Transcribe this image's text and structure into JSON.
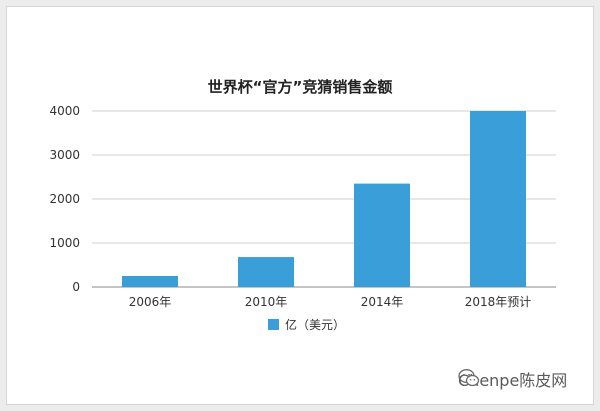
{
  "chart_data": {
    "type": "bar",
    "title": "世界杯“官方”竞猜销售金额",
    "categories": [
      "2006年",
      "2010年",
      "2014年",
      "2018年预计"
    ],
    "series": [
      {
        "name": "亿（美元）",
        "values": [
          250,
          680,
          2350,
          4000
        ],
        "color": "#3a9fd8"
      }
    ],
    "ylim": [
      0,
      4000
    ],
    "yticks": [
      0,
      1000,
      2000,
      3000,
      4000
    ],
    "grid": true,
    "legend": "bottom"
  },
  "watermark": {
    "text": "Chenpe陈皮网",
    "icon": "wechat-icon"
  }
}
